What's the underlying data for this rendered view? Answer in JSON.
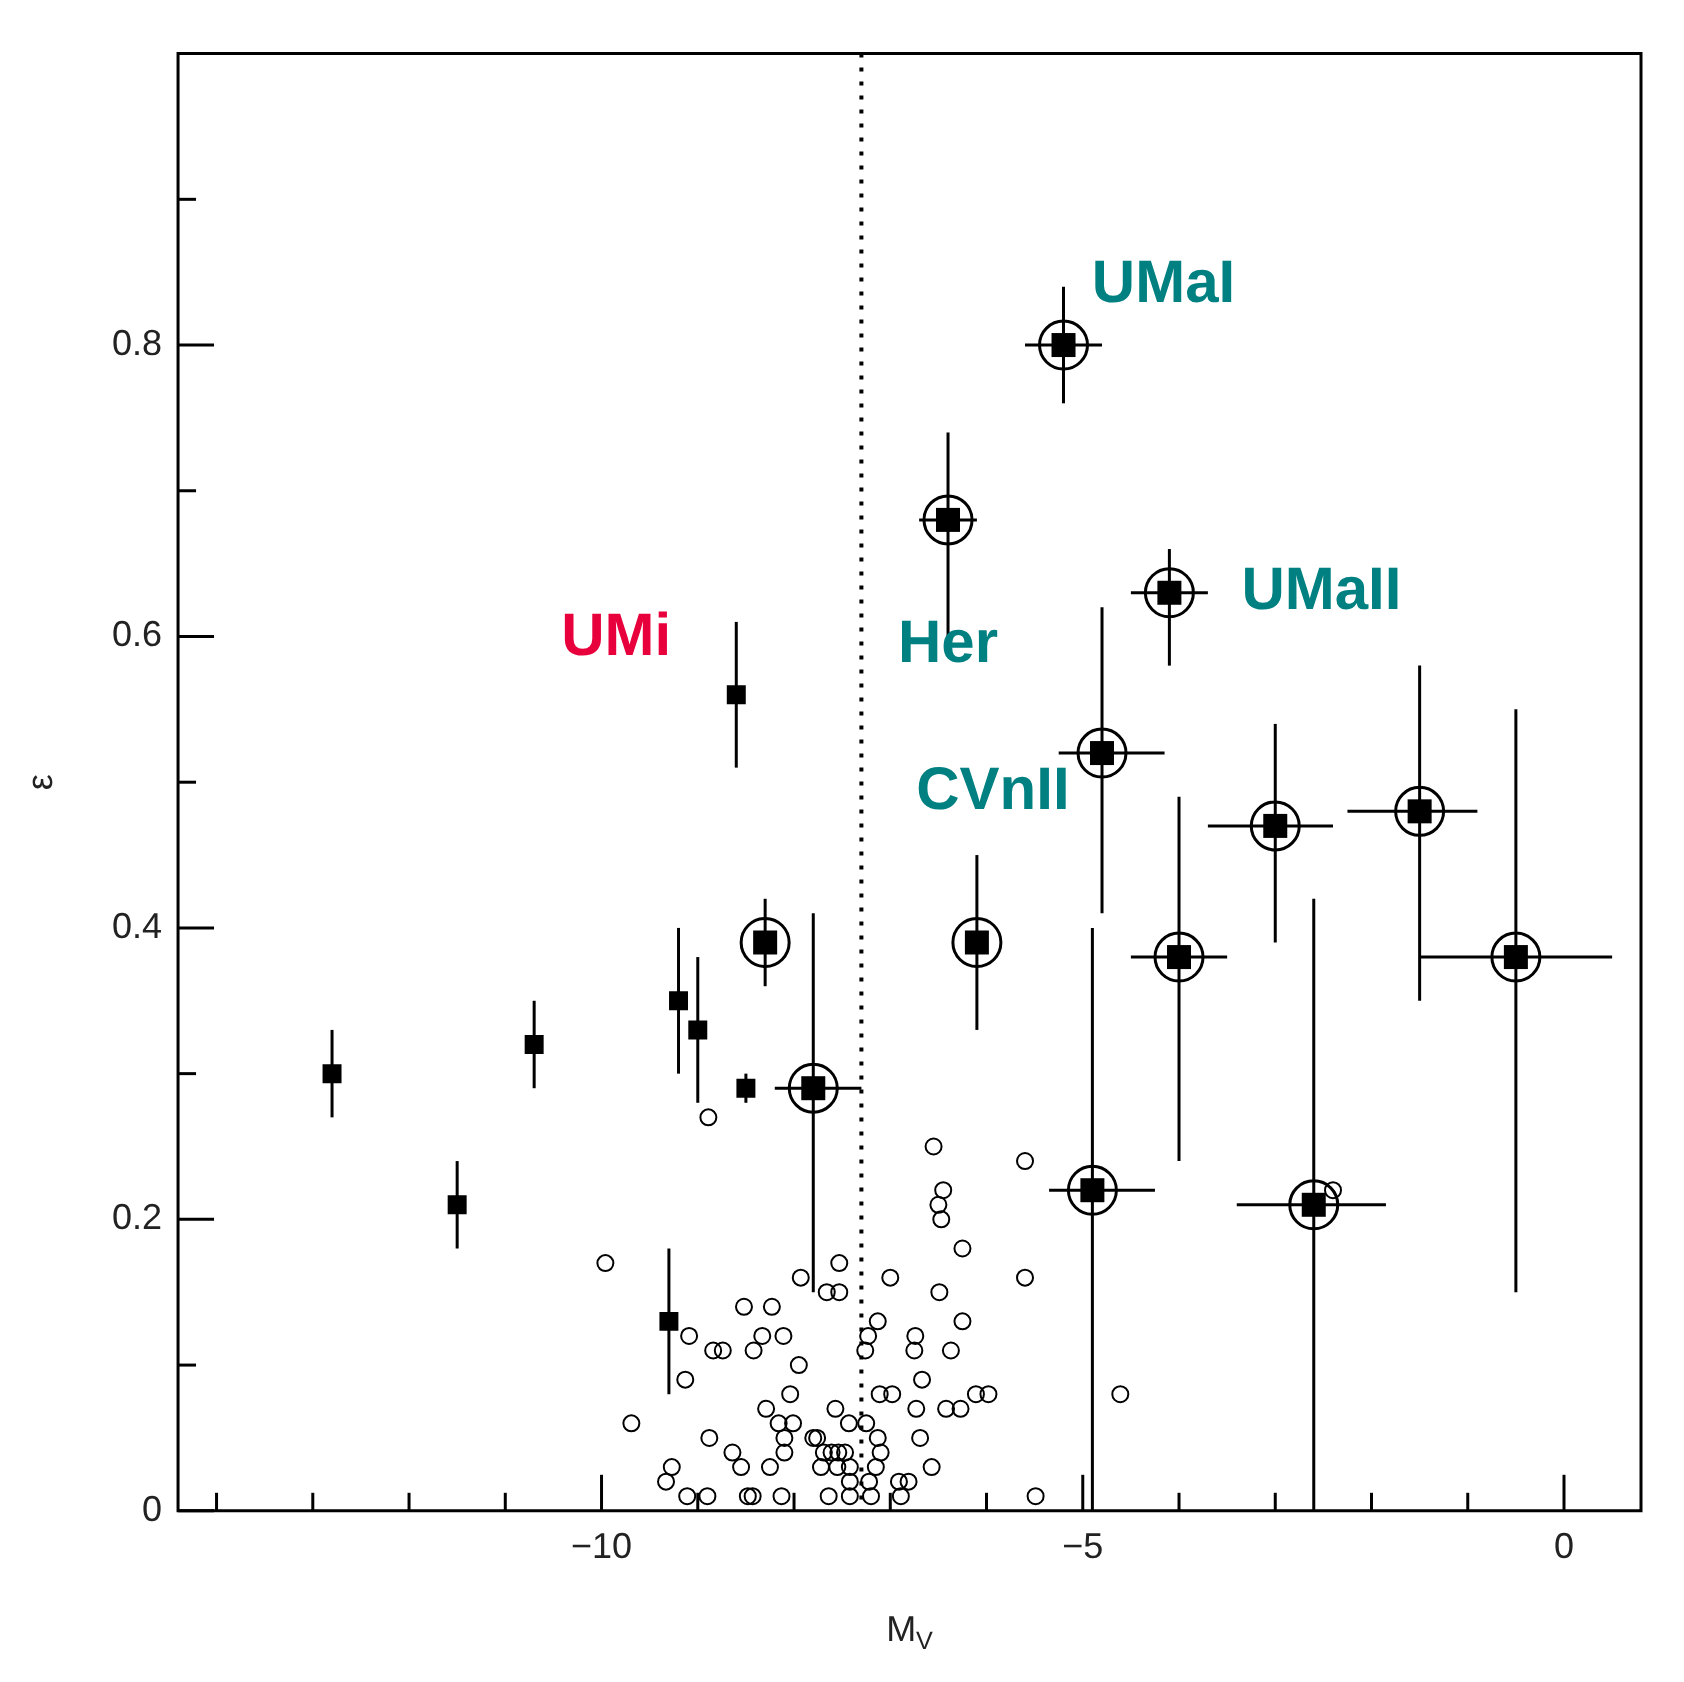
{
  "chart_data": {
    "type": "scatter",
    "xlabel": "M$_{V}$",
    "ylabel": "ε",
    "xlim": [
      -14.4,
      0.8
    ],
    "ylim": [
      0,
      1
    ],
    "xticks": [
      {
        "value": -14,
        "label": null
      },
      {
        "value": -13,
        "label": null
      },
      {
        "value": -12,
        "label": null
      },
      {
        "value": -11,
        "label": null
      },
      {
        "value": -10,
        "label": "−10"
      },
      {
        "value": -9,
        "label": null
      },
      {
        "value": -8,
        "label": null
      },
      {
        "value": -7,
        "label": null
      },
      {
        "value": -6,
        "label": null
      },
      {
        "value": -5,
        "label": "−5"
      },
      {
        "value": -4,
        "label": null
      },
      {
        "value": -3,
        "label": null
      },
      {
        "value": -2,
        "label": null
      },
      {
        "value": -1,
        "label": null
      },
      {
        "value": 0,
        "label": "0"
      }
    ],
    "yticks": [
      0,
      {
        "value": 0.1,
        "label": null
      },
      0.2,
      {
        "value": 0.3,
        "label": null
      },
      0.4,
      {
        "value": 0.5,
        "label": null
      },
      0.6,
      {
        "value": 0.7,
        "label": null
      },
      0.8,
      {
        "value": 0.9,
        "label": null
      }
    ],
    "grid": false,
    "legend": false,
    "ref_lines": [
      {
        "axis": "x",
        "value": -7.3,
        "color": "#000000",
        "line_style": "dotted"
      }
    ],
    "annotations": [
      {
        "text": "UMi",
        "x": -8.6,
        "y": 0.56
      },
      {
        "text": "Her",
        "x": -6.4,
        "y": 0.68
      },
      {
        "text": "UMaI",
        "x": -5.2,
        "y": 0.8
      },
      {
        "text": "UMaII",
        "x": -4.1,
        "y": 0.63
      },
      {
        "text": "CVnII",
        "x": -6.1,
        "y": 0.39
      }
    ],
    "series": [
      {
        "color": "#000000",
        "marker": "square",
        "x": [
          -12.8,
          -11.5,
          -10.7,
          -9.2,
          -9.0,
          -8.6,
          -8.5,
          -9.3
        ],
        "values": [
          0.3,
          0.21,
          0.32,
          0.35,
          0.33,
          0.56,
          0.29,
          0.13
        ],
        "errors": [
          0.03,
          0.03,
          0.03,
          0.05,
          0.05,
          0.05,
          0.01,
          0.05
        ]
      },
      {
        "color": "#000000",
        "marker": "circle",
        "x": [
          -8.3,
          -7.8,
          -6.1,
          -6.4,
          -5.2,
          -4.1,
          -4.8,
          -3.0,
          -1.5,
          -4.0,
          -0.5,
          -4.9,
          -2.6
        ],
        "values": [
          0.39,
          0.29,
          0.39,
          0.68,
          0.8,
          0.63,
          0.52,
          0.47,
          0.48,
          0.38,
          0.38,
          0.22,
          0.21
        ],
        "errors": [
          [
            0.36,
            0.42
          ],
          [
            0.15,
            0.41
          ],
          [
            0.33,
            0.45
          ],
          [
            0.6,
            0.74
          ],
          [
            0.76,
            0.84
          ],
          [
            0.58,
            0.66
          ],
          [
            0.41,
            0.62
          ],
          [
            0.39,
            0.54
          ],
          [
            0.35,
            0.58
          ],
          [
            0.24,
            0.49
          ],
          [
            0.15,
            0.55
          ],
          [
            0,
            0.4
          ],
          [
            0,
            0.42
          ]
        ],
        "xerrors": [
          null,
          [
            -8.2,
            -7.3
          ],
          null,
          0.3,
          0.4,
          0.4,
          [
            -5.25,
            -4.15
          ],
          [
            -3.7,
            -2.4
          ],
          [
            -2.25,
            -0.9
          ],
          [
            -4.5,
            -3.5
          ],
          [
            -1.5,
            0.5
          ],
          [
            -5.35,
            -4.25
          ],
          [
            -3.4,
            -1.85
          ]
        ]
      },
      {
        "color": "#000000",
        "marker": "circle",
        "x": [
          -9.96,
          -7.93,
          -7.53,
          -7.66,
          -7.53,
          -7.0,
          -6.45,
          -6.5,
          -6.47,
          -6.25,
          -5.6,
          -6.49,
          -8.52,
          -8.23,
          -7.13,
          -6.25,
          -9.09,
          -8.84,
          -8.74,
          -8.42,
          -8.33,
          -8.11,
          -7.23,
          -7.26,
          -6.74,
          -6.75,
          -6.37,
          -7.95,
          -9.13,
          -6.67,
          -8.04,
          -7.11,
          -6.98,
          -6.11,
          -5.98,
          -9.69,
          -8.29,
          -8.16,
          -8.01,
          -7.57,
          -7.43,
          -7.25,
          -6.73,
          -6.42,
          -6.27,
          -8.88,
          -8.64,
          -8.1,
          -8.1,
          -7.8,
          -7.76,
          -7.13,
          -7.1,
          -6.69,
          -7.69,
          -7.61,
          -7.54,
          -7.47,
          -9.27,
          -9.33,
          -8.55,
          -8.25,
          -7.72,
          -7.55,
          -7.42,
          -7.15,
          -6.57,
          -9.11,
          -8.9,
          -8.48,
          -8.43,
          -8.13,
          -7.64,
          -7.42,
          -7.42,
          -7.22,
          -7.2,
          -6.91,
          -6.81,
          -6.89,
          -5.49,
          -8.89,
          -5.6,
          -4.61,
          -2.4,
          -6.55
        ],
        "values": [
          0.17,
          0.16,
          0.17,
          0.15,
          0.15,
          0.16,
          0.22,
          0.21,
          0.2,
          0.18,
          0.16,
          0.15,
          0.14,
          0.14,
          0.13,
          0.13,
          0.12,
          0.11,
          0.11,
          0.11,
          0.12,
          0.12,
          0.12,
          0.11,
          0.12,
          0.11,
          0.11,
          0.1,
          0.09,
          0.09,
          0.08,
          0.08,
          0.08,
          0.08,
          0.08,
          0.06,
          0.07,
          0.06,
          0.06,
          0.07,
          0.06,
          0.06,
          0.07,
          0.07,
          0.07,
          0.05,
          0.04,
          0.05,
          0.04,
          0.05,
          0.05,
          0.05,
          0.04,
          0.05,
          0.04,
          0.04,
          0.04,
          0.04,
          0.03,
          0.02,
          0.03,
          0.03,
          0.03,
          0.03,
          0.03,
          0.03,
          0.03,
          0.01,
          0.01,
          0.01,
          0.01,
          0.01,
          0.01,
          0.02,
          0.01,
          0.02,
          0.01,
          0.02,
          0.02,
          0.01,
          0.01,
          0.27,
          0.24,
          0.08,
          0.22,
          0.25
        ]
      }
    ]
  }
}
